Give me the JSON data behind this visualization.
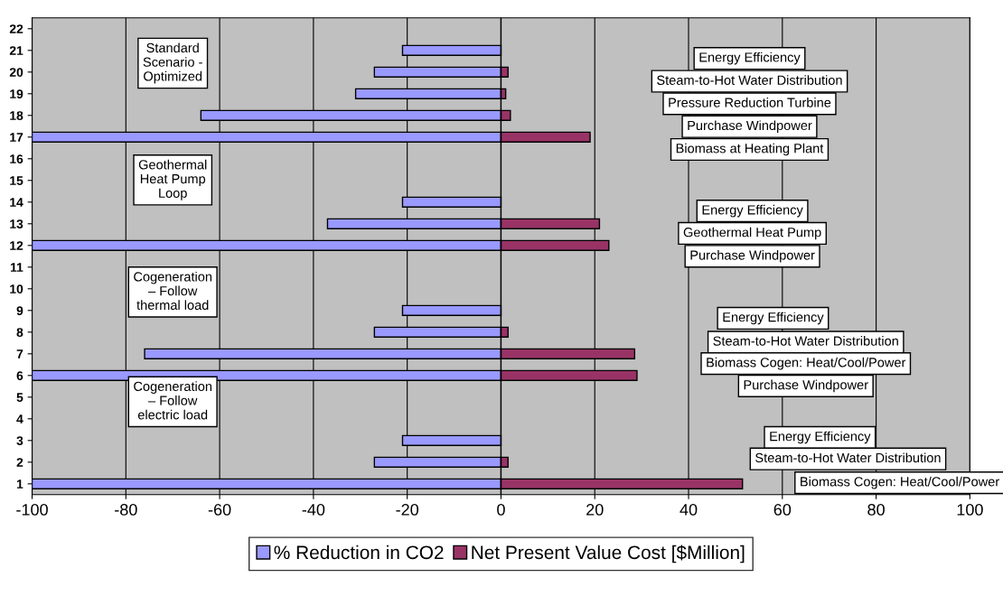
{
  "chart_data": {
    "type": "bar",
    "orientation": "horizontal",
    "stacked": true,
    "categories": [
      "22",
      "21",
      "20",
      "19",
      "18",
      "17",
      "16",
      "15",
      "14",
      "13",
      "12",
      "11",
      "10",
      "9",
      "8",
      "7",
      "6",
      "5",
      "4",
      "3",
      "2",
      "1"
    ],
    "series": [
      {
        "name": "% Reduction in CO2",
        "color": "#9999ff",
        "values": [
          null,
          -21,
          -27,
          -31,
          -64,
          -100,
          null,
          null,
          -21,
          -37,
          -100,
          null,
          null,
          -21,
          -27,
          -76,
          -100,
          null,
          null,
          -21,
          -27,
          -100
        ]
      },
      {
        "name": "Net Present Value Cost [$Million]",
        "color": "#993366",
        "values": [
          null,
          null,
          1.5,
          1,
          2,
          19,
          null,
          null,
          null,
          21,
          23,
          null,
          null,
          null,
          1.5,
          28.5,
          29,
          null,
          null,
          null,
          1.5,
          51.5
        ]
      }
    ],
    "xlim": [
      -100,
      100
    ],
    "xticks": [
      -100,
      -80,
      -60,
      -40,
      -20,
      0,
      20,
      40,
      60,
      80,
      100
    ],
    "grid": "x",
    "legend": "bottom",
    "annotations": [
      "Standard\nScenario -\nOptimized",
      "Geothermal\nHeat Pump\nLoop",
      "Cogeneration\n– Follow\nthermal load",
      "Cogeneration\n– Follow\nelectric load",
      "Energy Efficiency",
      "Steam-to-Hot Water Distribution",
      "Pressure Reduction Turbine",
      "Purchase Windpower",
      "Biomass at Heating Plant",
      "Energy Efficiency",
      "Geothermal Heat Pump",
      "Purchase Windpower",
      "Energy Efficiency",
      "Steam-to-Hot Water Distribution",
      "Biomass Cogen: Heat/Cool/Power",
      "Purchase Windpower",
      "Energy Efficiency",
      "Steam-to-Hot Water Distribution",
      "Biomass Cogen: Heat/Cool/Power"
    ]
  }
}
